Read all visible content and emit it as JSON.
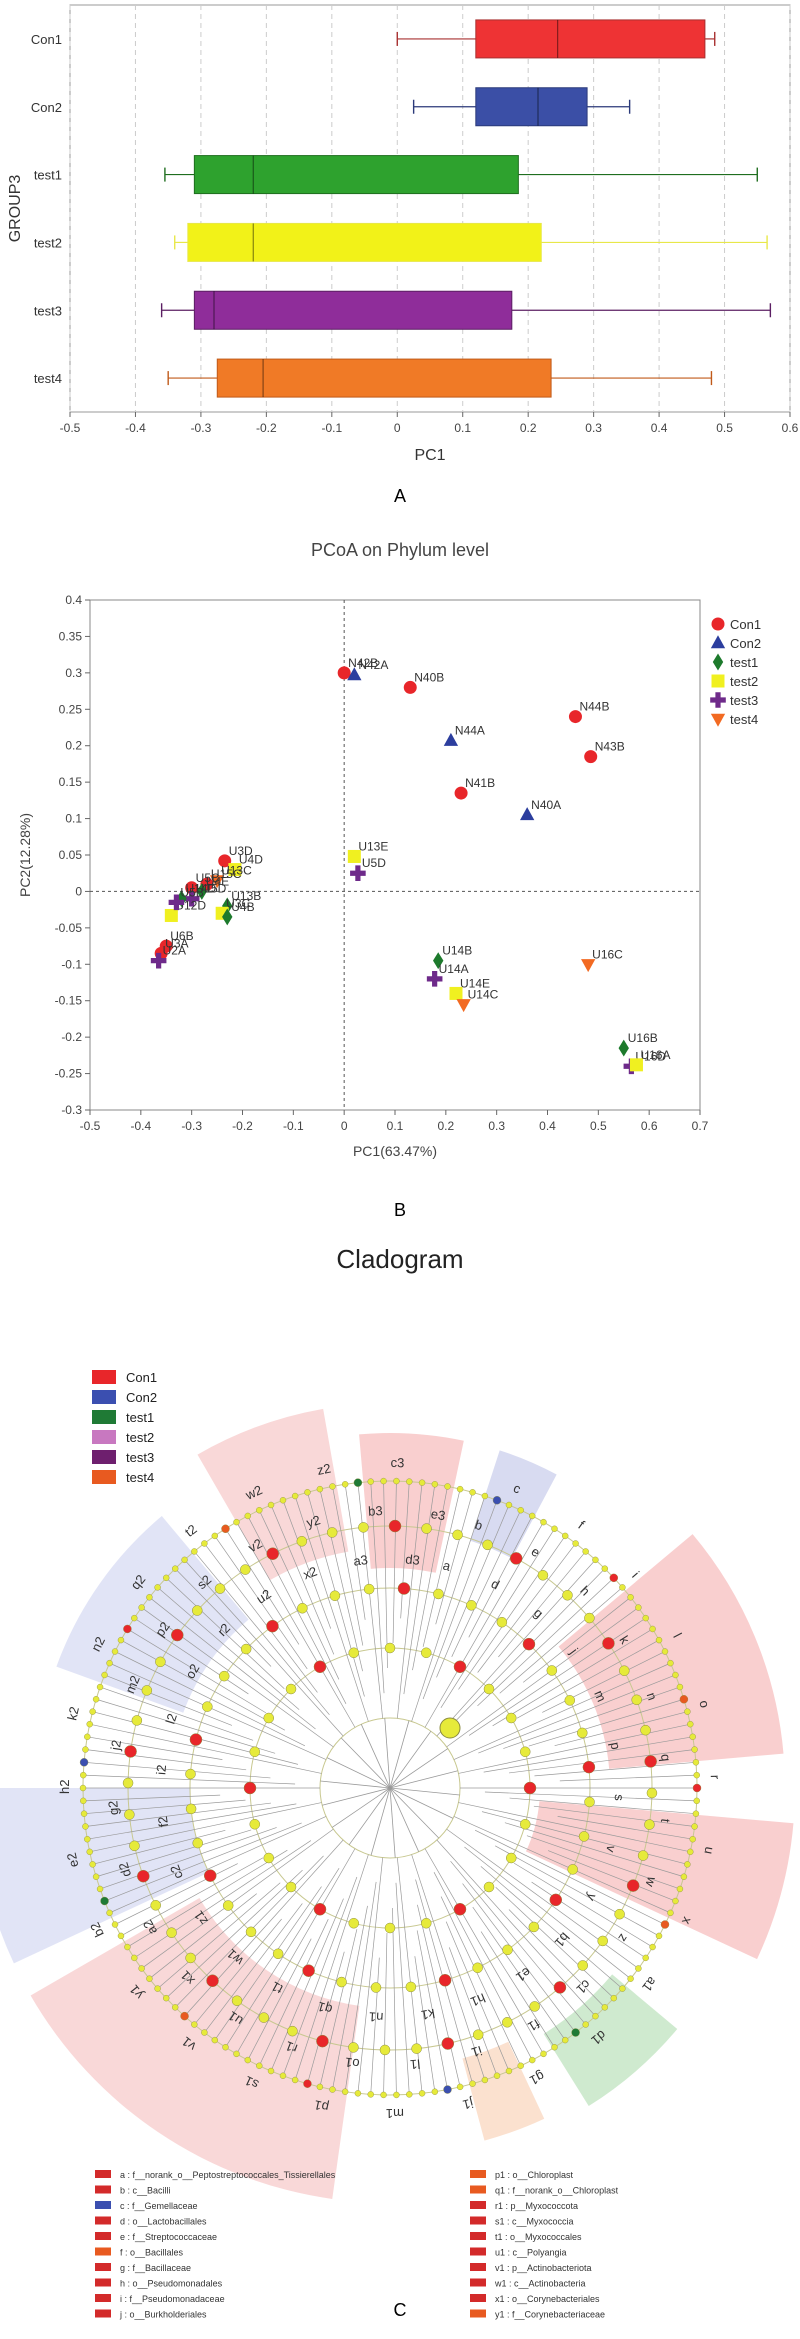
{
  "panel_labels": {
    "a": "A",
    "b": "B",
    "c": "C"
  },
  "chart_data": [
    {
      "type": "boxplot",
      "title": "",
      "xlabel": "PC1",
      "ylabel": "GROUP3",
      "xlim": [
        -0.5,
        0.6
      ],
      "xticks": [
        -0.5,
        -0.4,
        -0.3,
        -0.2,
        -0.1,
        0,
        0.1,
        0.2,
        0.3,
        0.4,
        0.5,
        0.6
      ],
      "categories": [
        "Con1",
        "Con2",
        "test1",
        "test2",
        "test3",
        "test4"
      ],
      "colors": [
        "#ee3334",
        "#3b4fa6",
        "#2ea22e",
        "#f2f218",
        "#8f2d9a",
        "#f07a26"
      ],
      "whisker_colors": [
        "#a83030",
        "#2b3a7a",
        "#1f6e1f",
        "#e8e84a",
        "#5b1f63",
        "#c05a1a"
      ],
      "boxes": [
        {
          "min": 0.0,
          "q1": 0.12,
          "median": 0.245,
          "q3": 0.47,
          "max": 0.485
        },
        {
          "min": 0.025,
          "q1": 0.12,
          "median": 0.215,
          "q3": 0.29,
          "max": 0.355
        },
        {
          "min": -0.355,
          "q1": -0.31,
          "median": -0.22,
          "q3": 0.185,
          "max": 0.55
        },
        {
          "min": -0.34,
          "q1": -0.32,
          "median": -0.22,
          "q3": 0.22,
          "max": 0.565
        },
        {
          "min": -0.36,
          "q1": -0.31,
          "median": -0.28,
          "q3": 0.175,
          "max": 0.57
        },
        {
          "min": -0.35,
          "q1": -0.275,
          "median": -0.205,
          "q3": 0.235,
          "max": 0.48
        }
      ]
    },
    {
      "type": "scatter",
      "title": "PCoA on Phylum level",
      "xlabel": "PC1(63.47%)",
      "ylabel": "PC2(12.28%)",
      "xlim": [
        -0.5,
        0.7
      ],
      "ylim": [
        -0.3,
        0.4
      ],
      "xticks": [
        -0.5,
        -0.4,
        -0.3,
        -0.2,
        -0.1,
        0,
        0.1,
        0.2,
        0.3,
        0.4,
        0.5,
        0.6,
        0.7
      ],
      "yticks": [
        -0.3,
        -0.25,
        -0.2,
        -0.15,
        -0.1,
        -0.05,
        0,
        0.05,
        0.1,
        0.15,
        0.2,
        0.25,
        0.3,
        0.35,
        0.4
      ],
      "groups": [
        {
          "name": "Con1",
          "color": "#e8262a",
          "marker": "circle"
        },
        {
          "name": "Con2",
          "color": "#2c3e9e",
          "marker": "triangle-up"
        },
        {
          "name": "test1",
          "color": "#1d7a2c",
          "marker": "diamond"
        },
        {
          "name": "test2",
          "color": "#f0f020",
          "marker": "square"
        },
        {
          "name": "test3",
          "color": "#6e2a8a",
          "marker": "plus"
        },
        {
          "name": "test4",
          "color": "#f26a22",
          "marker": "triangle-down"
        }
      ],
      "points": [
        {
          "label": "N42B",
          "x": 0.0,
          "y": 0.3,
          "group": 0
        },
        {
          "label": "N42A",
          "x": 0.02,
          "y": 0.297,
          "group": 1
        },
        {
          "label": "N40B",
          "x": 0.13,
          "y": 0.28,
          "group": 0
        },
        {
          "label": "N44B",
          "x": 0.455,
          "y": 0.24,
          "group": 0
        },
        {
          "label": "N44A",
          "x": 0.21,
          "y": 0.207,
          "group": 1
        },
        {
          "label": "N43B",
          "x": 0.485,
          "y": 0.185,
          "group": 0
        },
        {
          "label": "N41B",
          "x": 0.23,
          "y": 0.135,
          "group": 0
        },
        {
          "label": "N40A",
          "x": 0.36,
          "y": 0.105,
          "group": 1
        },
        {
          "label": "U13E",
          "x": 0.02,
          "y": 0.048,
          "group": 3
        },
        {
          "label": "U5D",
          "x": 0.027,
          "y": 0.025,
          "group": 4
        },
        {
          "label": "U3D",
          "x": -0.235,
          "y": 0.042,
          "group": 0
        },
        {
          "label": "U4D",
          "x": -0.215,
          "y": 0.03,
          "group": 3
        },
        {
          "label": "U13C",
          "x": -0.25,
          "y": 0.015,
          "group": 5
        },
        {
          "label": "U15C",
          "x": -0.27,
          "y": 0.01,
          "group": 0
        },
        {
          "label": "U5C",
          "x": -0.3,
          "y": 0.005,
          "group": 0
        },
        {
          "label": "U4E",
          "x": -0.28,
          "y": 0.0,
          "group": 2
        },
        {
          "label": "U15D",
          "x": -0.3,
          "y": -0.01,
          "group": 4
        },
        {
          "label": "U14D",
          "x": -0.32,
          "y": -0.01,
          "group": 2
        },
        {
          "label": "U13B",
          "x": -0.23,
          "y": -0.02,
          "group": 2
        },
        {
          "label": "U12D",
          "x": -0.34,
          "y": -0.033,
          "group": 3
        },
        {
          "label": "U3C",
          "x": -0.24,
          "y": -0.03,
          "group": 3
        },
        {
          "label": "U5B",
          "x": -0.33,
          "y": -0.015,
          "group": 4
        },
        {
          "label": "U4B",
          "x": -0.23,
          "y": -0.035,
          "group": 2
        },
        {
          "label": "U6B",
          "x": -0.35,
          "y": -0.075,
          "group": 0
        },
        {
          "label": "U3A",
          "x": -0.36,
          "y": -0.085,
          "group": 0
        },
        {
          "label": "U2A",
          "x": -0.365,
          "y": -0.095,
          "group": 4
        },
        {
          "label": "U14B",
          "x": 0.185,
          "y": -0.095,
          "group": 2
        },
        {
          "label": "U14A",
          "x": 0.178,
          "y": -0.12,
          "group": 4
        },
        {
          "label": "U14E",
          "x": 0.22,
          "y": -0.14,
          "group": 3
        },
        {
          "label": "U14C",
          "x": 0.235,
          "y": -0.155,
          "group": 5
        },
        {
          "label": "U16C",
          "x": 0.48,
          "y": -0.1,
          "group": 5
        },
        {
          "label": "U16B",
          "x": 0.55,
          "y": -0.215,
          "group": 2
        },
        {
          "label": "U16D",
          "x": 0.565,
          "y": -0.24,
          "group": 4
        },
        {
          "label": "U16A",
          "x": 0.575,
          "y": -0.238,
          "group": 3
        }
      ]
    },
    {
      "type": "cladogram",
      "title": "Cladogram",
      "legend": [
        {
          "name": "Con1",
          "color": "#e8262a"
        },
        {
          "name": "Con2",
          "color": "#3b4fb0"
        },
        {
          "name": "test1",
          "color": "#1f7a35"
        },
        {
          "name": "test2",
          "color": "#c878c0"
        },
        {
          "name": "test3",
          "color": "#6e1f6e"
        },
        {
          "name": "test4",
          "color": "#e85a20"
        }
      ],
      "ring_labels": [
        "a",
        "b",
        "c",
        "d",
        "e",
        "f",
        "g",
        "h",
        "i",
        "j",
        "k",
        "l",
        "m",
        "n",
        "o",
        "p",
        "q",
        "r",
        "s",
        "t",
        "u",
        "v",
        "w",
        "x",
        "y",
        "z",
        "a1",
        "b1",
        "c1",
        "d1",
        "e1",
        "f1",
        "g1",
        "h1",
        "i1",
        "j1",
        "k1",
        "l1",
        "m1",
        "n1",
        "o1",
        "p1",
        "q1",
        "r1",
        "s1",
        "t1",
        "u1",
        "v1",
        "w1",
        "x1",
        "y1",
        "z1",
        "a2",
        "b2",
        "c2",
        "d2",
        "e2",
        "f2",
        "g2",
        "h2",
        "i2",
        "j2",
        "k2",
        "l2",
        "m2",
        "n2",
        "o2",
        "p2",
        "q2",
        "r2",
        "s2",
        "t2",
        "u2",
        "v2",
        "w2",
        "x2",
        "y2",
        "z2",
        "a3",
        "b3",
        "c3",
        "d3",
        "e3"
      ],
      "taxa_left": [
        {
          "key": "a",
          "text": "a : f__norank_o__Peptostreptococcales_Tissierellales",
          "color": "#d32a2a"
        },
        {
          "key": "b",
          "text": "b : c__Bacilli",
          "color": "#d32a2a"
        },
        {
          "key": "c",
          "text": "c : f__Gemellaceae",
          "color": "#3b4fb0"
        },
        {
          "key": "d",
          "text": "d : o__Lactobacillales",
          "color": "#d32a2a"
        },
        {
          "key": "e",
          "text": "e : f__Streptococcaceae",
          "color": "#d32a2a"
        },
        {
          "key": "f",
          "text": "f : o__Bacillales",
          "color": "#e85a20"
        },
        {
          "key": "g",
          "text": "g : f__Bacillaceae",
          "color": "#d32a2a"
        },
        {
          "key": "h",
          "text": "h : o__Pseudomonadales",
          "color": "#d32a2a"
        },
        {
          "key": "i",
          "text": "i : f__Pseudomonadaceae",
          "color": "#d32a2a"
        },
        {
          "key": "j",
          "text": "j : o__Burkholderiales",
          "color": "#d32a2a"
        }
      ],
      "taxa_right": [
        {
          "key": "p1",
          "text": "p1 : o__Chloroplast",
          "color": "#e85a20"
        },
        {
          "key": "q1",
          "text": "q1 : f__norank_o__Chloroplast",
          "color": "#e85a20"
        },
        {
          "key": "r1",
          "text": "r1 : p__Myxococcota",
          "color": "#d32a2a"
        },
        {
          "key": "s1",
          "text": "s1 : c__Myxococcia",
          "color": "#d32a2a"
        },
        {
          "key": "t1",
          "text": "t1 : o__Myxococcales",
          "color": "#d32a2a"
        },
        {
          "key": "u1",
          "text": "u1 : c__Polyangia",
          "color": "#d32a2a"
        },
        {
          "key": "v1",
          "text": "v1 : p__Actinobacteriota",
          "color": "#d32a2a"
        },
        {
          "key": "w1",
          "text": "w1 : c__Actinobacteria",
          "color": "#d32a2a"
        },
        {
          "key": "x1",
          "text": "x1 : o__Corynebacteriales",
          "color": "#d32a2a"
        },
        {
          "key": "y1",
          "text": "y1 : f__Corynebacteriaceae",
          "color": "#e85a20"
        }
      ]
    }
  ]
}
